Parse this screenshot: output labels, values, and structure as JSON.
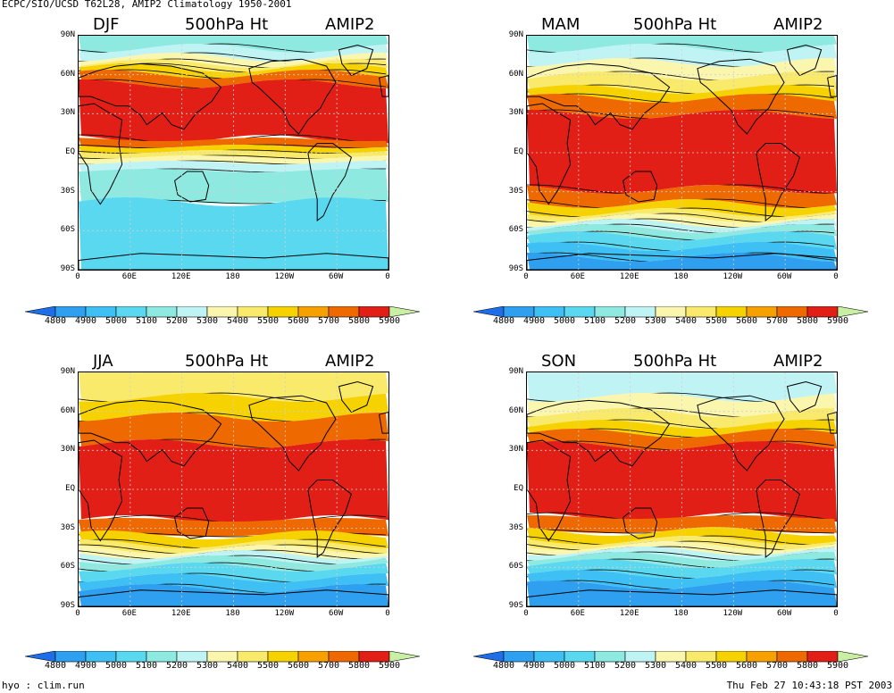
{
  "header": {
    "title": "ECPC/SIO/UCSD T62L28, AMIP2 Climatology 1950-2001"
  },
  "footer": {
    "left": "hyo : clim.run",
    "right": "Thu Feb 27 10:43:18 PST 2003"
  },
  "axes": {
    "lat_labels": [
      "90N",
      "60N",
      "30N",
      "EQ",
      "30S",
      "60S",
      "90S"
    ],
    "lon_labels": [
      "0",
      "60E",
      "120E",
      "180",
      "120W",
      "60W",
      "0"
    ]
  },
  "colorbar": {
    "labels": [
      "4800",
      "4900",
      "5000",
      "5100",
      "5200",
      "5300",
      "5400",
      "5500",
      "5600",
      "5700",
      "5800",
      "5900"
    ],
    "colors": [
      "#1e6eea",
      "#2fa0f0",
      "#3fc0f5",
      "#5ad8f0",
      "#8ee9e0",
      "#bff3f4",
      "#fbf6ae",
      "#faea6c",
      "#f6d200",
      "#f7a100",
      "#ee6a00",
      "#e21f16",
      "#c9f0a2"
    ]
  },
  "panels": [
    {
      "season": "DJF",
      "field": "500hPa Ht",
      "model": "AMIP2",
      "bands": [
        [
          "#8ee9e0",
          0,
          14
        ],
        [
          "#bff3f4",
          14,
          24
        ],
        [
          "#fbf6ae",
          24,
          31
        ],
        [
          "#faea6c",
          31,
          36
        ],
        [
          "#f6d200",
          36,
          43
        ],
        [
          "#ee6a00",
          43,
          54
        ],
        [
          "#e21f16",
          54,
          116
        ],
        [
          "#ee6a00",
          116,
          124
        ],
        [
          "#f6d200",
          124,
          130
        ],
        [
          "#faea6c",
          130,
          136
        ],
        [
          "#fbf6ae",
          136,
          142
        ],
        [
          "#bff3f4",
          142,
          151
        ],
        [
          "#8ee9e0",
          151,
          186
        ],
        [
          "#5ad8f0",
          186,
          262
        ]
      ]
    },
    {
      "season": "MAM",
      "field": "500hPa Ht",
      "model": "AMIP2",
      "bands": [
        [
          "#8ee9e0",
          0,
          14
        ],
        [
          "#bff3f4",
          14,
          30
        ],
        [
          "#fbf6ae",
          30,
          45
        ],
        [
          "#faea6c",
          45,
          60
        ],
        [
          "#f6d200",
          60,
          70
        ],
        [
          "#ee6a00",
          70,
          88
        ],
        [
          "#e21f16",
          88,
          172
        ],
        [
          "#ee6a00",
          172,
          188
        ],
        [
          "#f6d200",
          188,
          198
        ],
        [
          "#faea6c",
          198,
          204
        ],
        [
          "#fbf6ae",
          204,
          210
        ],
        [
          "#bff3f4",
          210,
          216
        ],
        [
          "#8ee9e0",
          216,
          224
        ],
        [
          "#5ad8f0",
          224,
          236
        ],
        [
          "#3fc0f5",
          236,
          248
        ],
        [
          "#2fa0f0",
          248,
          262
        ]
      ]
    },
    {
      "season": "JJA",
      "field": "500hPa Ht",
      "model": "AMIP2",
      "bands": [
        [
          "#faea6c",
          0,
          28
        ],
        [
          "#f6d200",
          28,
          50
        ],
        [
          "#ee6a00",
          50,
          80
        ],
        [
          "#e21f16",
          80,
          165
        ],
        [
          "#ee6a00",
          165,
          182
        ],
        [
          "#f6d200",
          182,
          192
        ],
        [
          "#faea6c",
          192,
          198
        ],
        [
          "#fbf6ae",
          198,
          204
        ],
        [
          "#bff3f4",
          204,
          210
        ],
        [
          "#8ee9e0",
          210,
          218
        ],
        [
          "#5ad8f0",
          218,
          230
        ],
        [
          "#3fc0f5",
          230,
          242
        ],
        [
          "#2fa0f0",
          242,
          262
        ]
      ]
    },
    {
      "season": "SON",
      "field": "500hPa Ht",
      "model": "AMIP2",
      "bands": [
        [
          "#bff3f4",
          0,
          28
        ],
        [
          "#fbf6ae",
          28,
          45
        ],
        [
          "#faea6c",
          45,
          58
        ],
        [
          "#f6d200",
          58,
          68
        ],
        [
          "#ee6a00",
          68,
          82
        ],
        [
          "#e21f16",
          82,
          162
        ],
        [
          "#ee6a00",
          162,
          178
        ],
        [
          "#f6d200",
          178,
          188
        ],
        [
          "#faea6c",
          188,
          194
        ],
        [
          "#fbf6ae",
          194,
          200
        ],
        [
          "#bff3f4",
          200,
          206
        ],
        [
          "#8ee9e0",
          206,
          214
        ],
        [
          "#5ad8f0",
          214,
          226
        ],
        [
          "#3fc0f5",
          226,
          238
        ],
        [
          "#2fa0f0",
          238,
          262
        ]
      ]
    }
  ]
}
